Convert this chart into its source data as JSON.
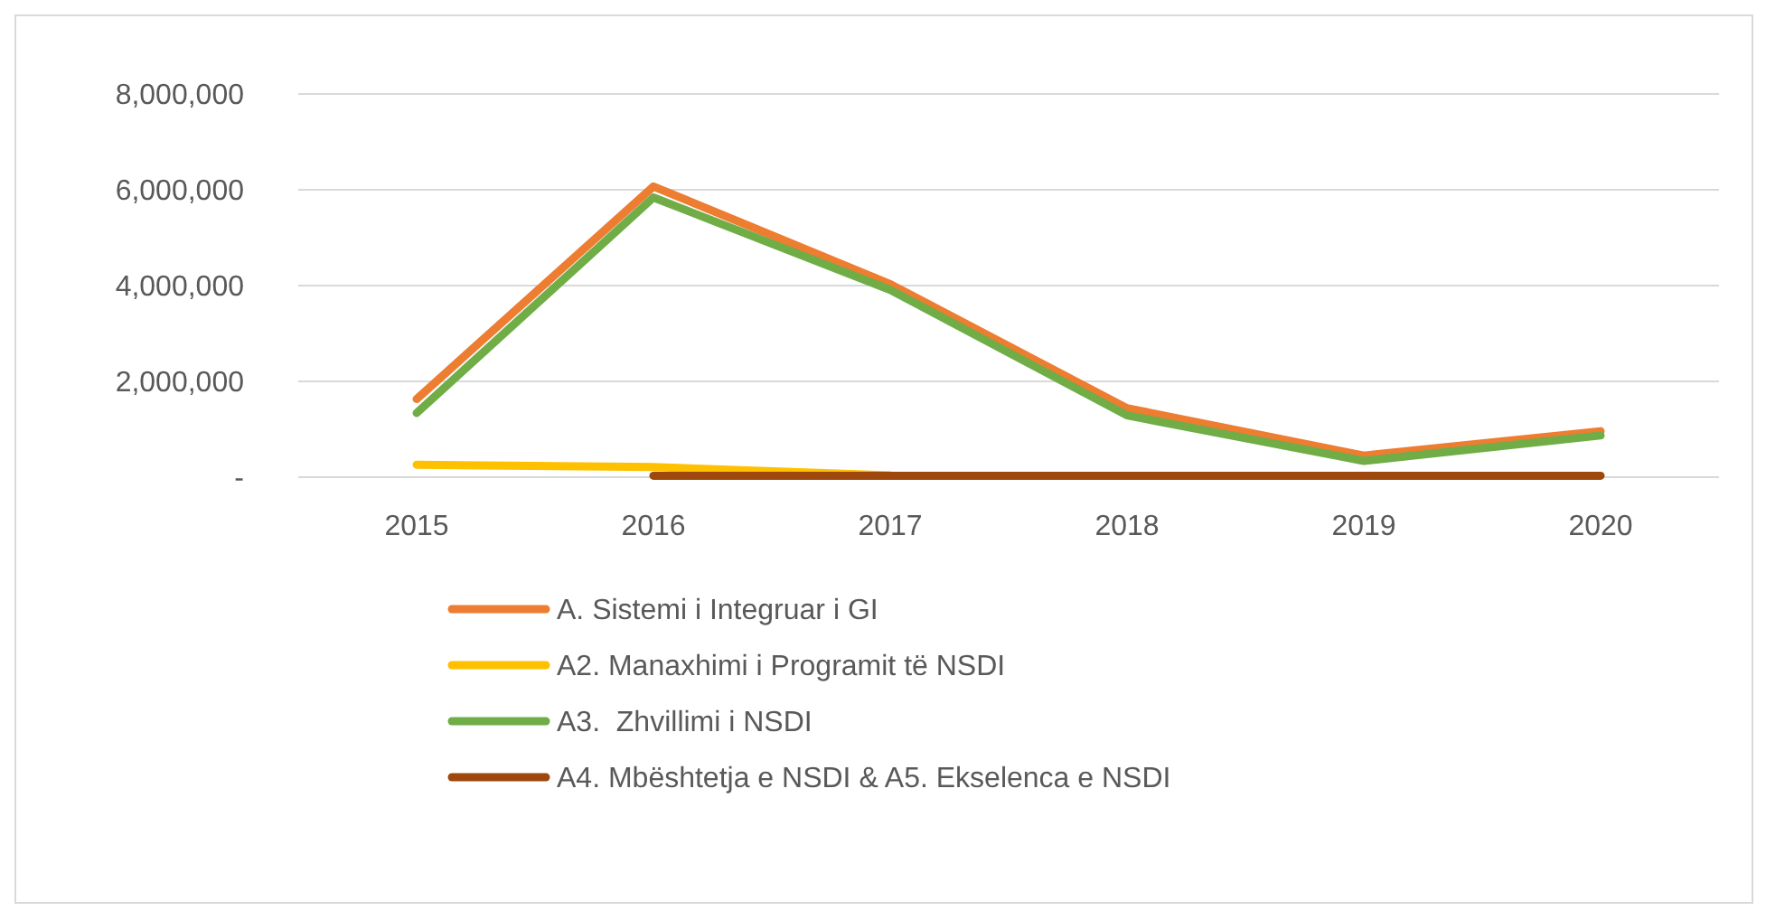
{
  "chart_data": {
    "type": "line",
    "categories": [
      "2015",
      "2016",
      "2017",
      "2018",
      "2019",
      "2020"
    ],
    "series": [
      {
        "name": "A. Sistemi i Integruar i GI",
        "color": "#ed7d31",
        "values": [
          1630000,
          6070000,
          4030000,
          1440000,
          450000,
          960000
        ]
      },
      {
        "name": "A2. Manaxhimi i Programit të NSDI",
        "color": "#ffc000",
        "values": [
          260000,
          210000,
          40000,
          null,
          null,
          null
        ]
      },
      {
        "name": "A3.  Zhvillimi i NSDI",
        "color": "#70ad47",
        "values": [
          1340000,
          5840000,
          3910000,
          1290000,
          340000,
          870000
        ]
      },
      {
        "name": "A4. Mbështetja e NSDI & A5. Ekselenca e NSDI",
        "color": "#9e480e",
        "values": [
          null,
          30000,
          30000,
          30000,
          30000,
          30000
        ]
      }
    ],
    "ylim": [
      0,
      8000000
    ],
    "yticks": [
      {
        "value": 0,
        "label": "-"
      },
      {
        "value": 2000000,
        "label": "2,000,000"
      },
      {
        "value": 4000000,
        "label": "4,000,000"
      },
      {
        "value": 6000000,
        "label": "6,000,000"
      },
      {
        "value": 8000000,
        "label": "8,000,000"
      }
    ],
    "grid": "y",
    "legend": "bottom",
    "line_style": "solid"
  }
}
